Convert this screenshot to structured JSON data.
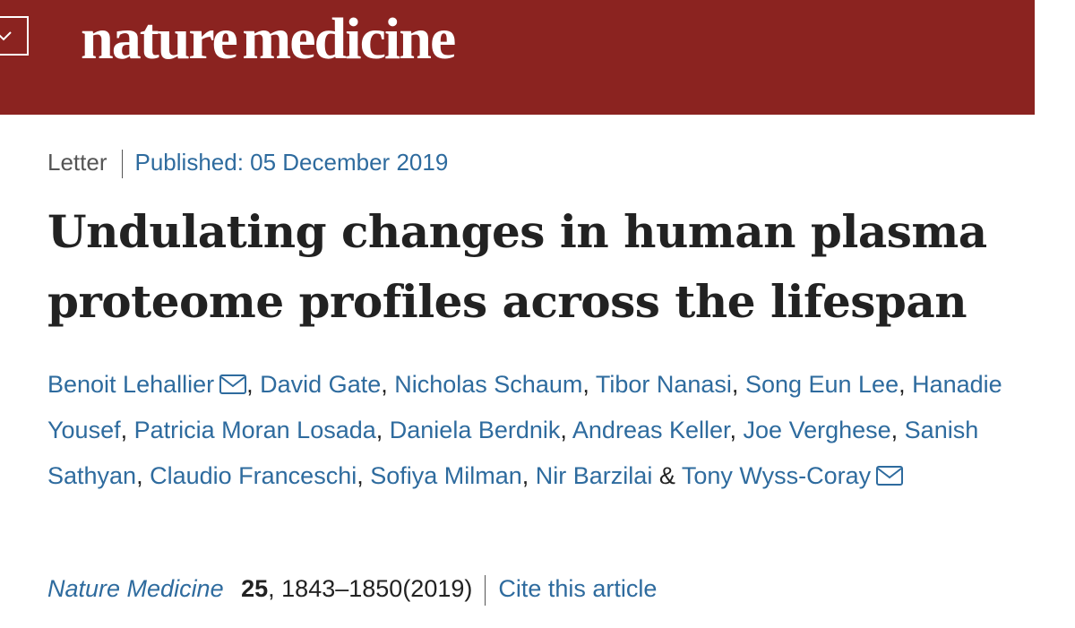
{
  "header": {
    "logo": "nature medicine"
  },
  "article": {
    "type": "Letter",
    "published": "Published: 05 December 2019",
    "title": "Undulating changes in human plasma proteome profiles across the lifespan",
    "authors": [
      {
        "name": "Benoit Lehallier",
        "email": true,
        "after": ", "
      },
      {
        "name": "David Gate",
        "after": ", "
      },
      {
        "name": "Nicholas Schaum",
        "after": ", "
      },
      {
        "name": "Tibor Nanasi",
        "after": ", "
      },
      {
        "name": "Song Eun Lee",
        "after": ", "
      },
      {
        "name": "Hanadie Yousef",
        "after": ", "
      },
      {
        "name": "Patricia Moran Losada",
        "after": ", "
      },
      {
        "name": "Daniela Berdnik",
        "after": ", "
      },
      {
        "name": "Andreas Keller",
        "after": ", "
      },
      {
        "name": "Joe Verghese",
        "after": ", "
      },
      {
        "name": "Sanish Sathyan",
        "after": ", "
      },
      {
        "name": "Claudio Franceschi",
        "after": ", "
      },
      {
        "name": "Sofiya Milman",
        "after": ", "
      },
      {
        "name": "Nir Barzilai",
        "after": " & "
      },
      {
        "name": "Tony Wyss-Coray",
        "email": true
      }
    ],
    "citation": {
      "journal": "Nature Medicine",
      "volume": "25",
      "pages": ", 1843–1850",
      "year": "(2019)",
      "cite": "Cite this article"
    }
  }
}
